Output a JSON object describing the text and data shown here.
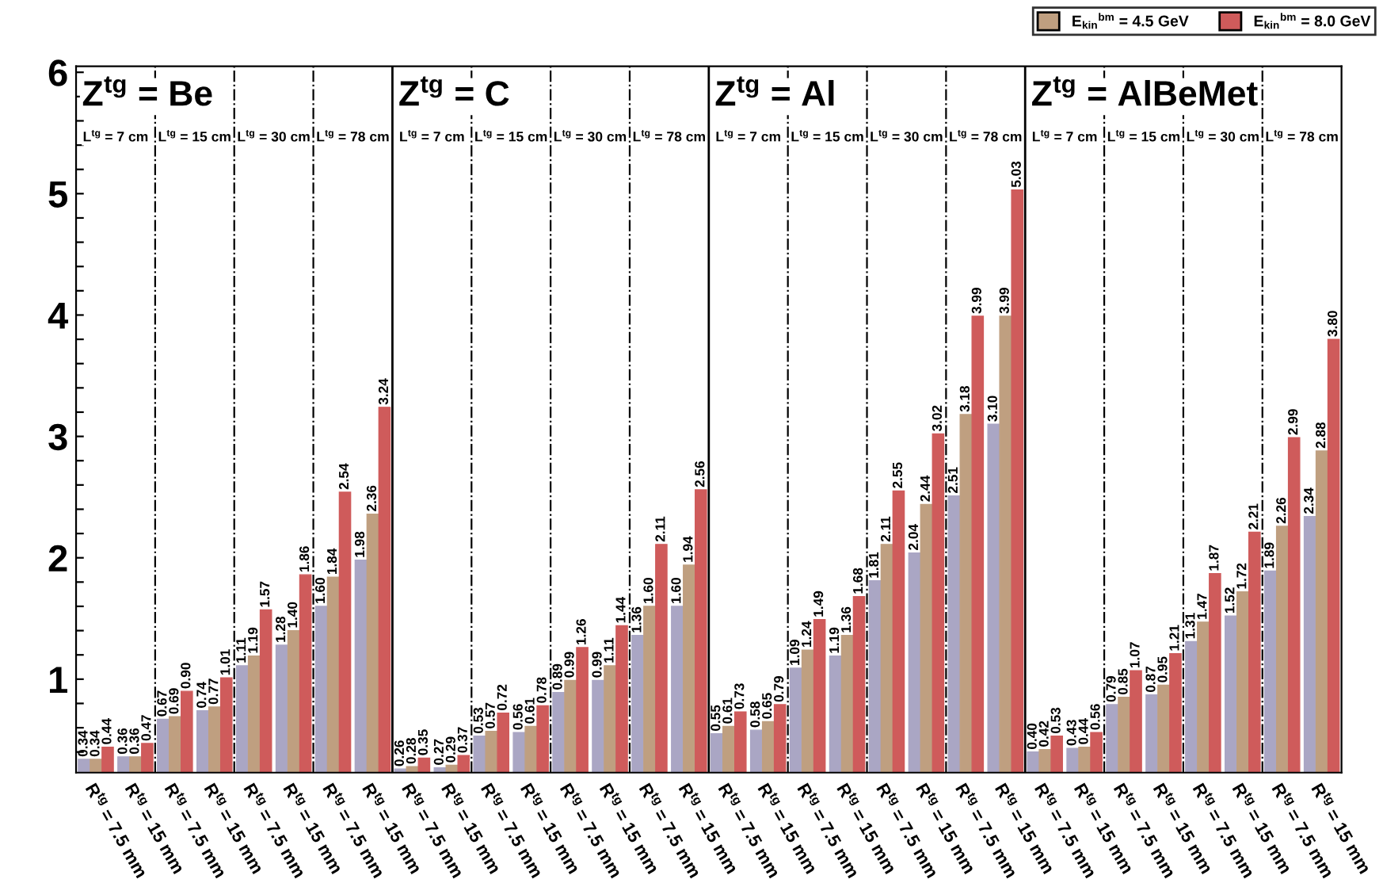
{
  "chart_data": {
    "type": "bar",
    "categories": [
      "R$^{tg}$ = 7.5 mm",
      "R$^{tg}$ = 15 mm",
      "R$^{tg}$ = 7.5 mm",
      "R$^{tg}$ = 15 mm",
      "R$^{tg}$ = 7.5 mm",
      "R$^{tg}$ = 15 mm",
      "R$^{tg}$ = 7.5 mm",
      "R$^{tg}$ = 15 mm",
      "R$^{tg}$ = 7.5 mm",
      "R$^{tg}$ = 15 mm",
      "R$^{tg}$ = 7.5 mm",
      "R$^{tg}$ = 15 mm",
      "R$^{tg}$ = 7.5 mm",
      "R$^{tg}$ = 15 mm",
      "R$^{tg}$ = 7.5 mm",
      "R$^{tg}$ = 15 mm",
      "R$^{tg}$ = 7.5 mm",
      "R$^{tg}$ = 15 mm",
      "R$^{tg}$ = 7.5 mm",
      "R$^{tg}$ = 15 mm",
      "R$^{tg}$ = 7.5 mm",
      "R$^{tg}$ = 15 mm",
      "R$^{tg}$ = 7.5 mm",
      "R$^{tg}$ = 15 mm",
      "R$^{tg}$ = 7.5 mm",
      "R$^{tg}$ = 15 mm",
      "R$^{tg}$ = 7.5 mm",
      "R$^{tg}$ = 15 mm",
      "R$^{tg}$ = 7.5 mm",
      "R$^{tg}$ = 15 mm",
      "R$^{tg}$ = 7.5 mm",
      "R$^{tg}$ = 15 mm"
    ],
    "series": [
      {
        "color": "#aaa6c4",
        "values": [
          0.34,
          0.36,
          0.67,
          0.74,
          1.11,
          1.28,
          1.6,
          1.98,
          0.26,
          0.27,
          0.53,
          0.56,
          0.89,
          0.99,
          1.36,
          1.6,
          0.55,
          0.58,
          1.09,
          1.19,
          1.81,
          2.04,
          2.51,
          3.1,
          0.4,
          0.43,
          0.79,
          0.87,
          1.31,
          1.52,
          1.89,
          2.34
        ],
        "value_labels": [
          "0.34",
          "0.36",
          "0.67",
          "0.74",
          "1.11",
          "1.28",
          "1.60",
          "1.98",
          "0.26",
          "0.27",
          "0.53",
          "0.56",
          "0.89",
          "0.99",
          "1.36",
          "1.60",
          "0.55",
          "0.58",
          "1.09",
          "1.19",
          "1.81",
          "2.04",
          "2.51",
          "3.10",
          "0.40",
          "0.43",
          "0.79",
          "0.87",
          "1.31",
          "1.52",
          "1.89",
          "2.34"
        ]
      },
      {
        "name": "E$_{kin}$$^{bm}$ = 4.5 GeV",
        "color": "#bf9f80",
        "values": [
          0.34,
          0.36,
          0.69,
          0.77,
          1.19,
          1.4,
          1.84,
          2.36,
          0.28,
          0.29,
          0.57,
          0.61,
          0.99,
          1.11,
          1.6,
          1.94,
          0.61,
          0.65,
          1.24,
          1.36,
          2.11,
          2.44,
          3.18,
          3.99,
          0.42,
          0.44,
          0.85,
          0.95,
          1.47,
          1.72,
          2.26,
          2.88
        ],
        "value_labels": [
          "0.34",
          "0.36",
          "0.69",
          "0.77",
          "1.19",
          "1.40",
          "1.84",
          "2.36",
          "0.28",
          "0.29",
          "0.57",
          "0.61",
          "0.99",
          "1.11",
          "1.60",
          "1.94",
          "0.61",
          "0.65",
          "1.24",
          "1.36",
          "2.11",
          "2.44",
          "3.18",
          "3.99",
          "0.42",
          "0.44",
          "0.85",
          "0.95",
          "1.47",
          "1.72",
          "2.26",
          "2.88"
        ]
      },
      {
        "name": "E$_{kin}$$^{bm}$ = 8.0 GeV",
        "color": "#cf5b5b",
        "values": [
          0.44,
          0.47,
          0.9,
          1.01,
          1.57,
          1.86,
          2.54,
          3.24,
          0.35,
          0.37,
          0.72,
          0.78,
          1.26,
          1.44,
          2.11,
          2.56,
          0.73,
          0.79,
          1.49,
          1.68,
          2.55,
          3.02,
          3.99,
          5.03,
          0.53,
          0.56,
          1.07,
          1.21,
          1.87,
          2.21,
          2.99,
          3.8
        ],
        "value_labels": [
          "0.44",
          "0.47",
          "0.90",
          "1.01",
          "1.57",
          "1.86",
          "2.54",
          "3.24",
          "0.35",
          "0.37",
          "0.72",
          "0.78",
          "1.26",
          "1.44",
          "2.11",
          "2.56",
          "0.73",
          "0.79",
          "1.49",
          "1.68",
          "2.55",
          "3.02",
          "3.99",
          "5.03",
          "0.53",
          "0.56",
          "1.07",
          "1.21",
          "1.87",
          "2.21",
          "2.99",
          "3.80"
        ]
      }
    ],
    "ylim": [
      0.23,
      6.05
    ],
    "yticks": [
      1,
      2,
      3,
      4,
      5,
      6,
      {
        "value": 0.4,
        "label": null
      },
      {
        "value": 0.6,
        "label": null
      },
      {
        "value": 0.8,
        "label": null
      },
      {
        "value": 1.2,
        "label": null
      },
      {
        "value": 1.4,
        "label": null
      },
      {
        "value": 1.6,
        "label": null
      },
      {
        "value": 1.8,
        "label": null
      },
      {
        "value": 2.2,
        "label": null
      },
      {
        "value": 2.4,
        "label": null
      },
      {
        "value": 2.6,
        "label": null
      },
      {
        "value": 2.8,
        "label": null
      },
      {
        "value": 3.2,
        "label": null
      },
      {
        "value": 3.4,
        "label": null
      },
      {
        "value": 3.6,
        "label": null
      },
      {
        "value": 3.8,
        "label": null
      },
      {
        "value": 4.2,
        "label": null
      },
      {
        "value": 4.4,
        "label": null
      },
      {
        "value": 4.6,
        "label": null
      },
      {
        "value": 4.8,
        "label": null
      },
      {
        "value": 5.2,
        "label": null
      },
      {
        "value": 5.4,
        "label": null
      },
      {
        "value": 5.6,
        "label": null
      },
      {
        "value": 5.8,
        "label": null
      }
    ],
    "annotations": [
      "Z$^{tg}$ = Be",
      "Z$^{tg}$ = C",
      "Z$^{tg}$ = Al",
      "Z$^{tg}$ = AlBeMet",
      "L$^{tg}$ = 7 cm",
      "L$^{tg}$ = 15 cm",
      "L$^{tg}$ = 30 cm",
      "L$^{tg}$ = 78 cm",
      "L$^{tg}$ = 7 cm",
      "L$^{tg}$ = 15 cm",
      "L$^{tg}$ = 30 cm",
      "L$^{tg}$ = 78 cm",
      "L$^{tg}$ = 7 cm",
      "L$^{tg}$ = 15 cm",
      "L$^{tg}$ = 30 cm",
      "L$^{tg}$ = 78 cm",
      "L$^{tg}$ = 7 cm",
      "L$^{tg}$ = 15 cm",
      "L$^{tg}$ = 30 cm",
      "L$^{tg}$ = 78 cm"
    ],
    "legend": "top right",
    "grid": false
  }
}
